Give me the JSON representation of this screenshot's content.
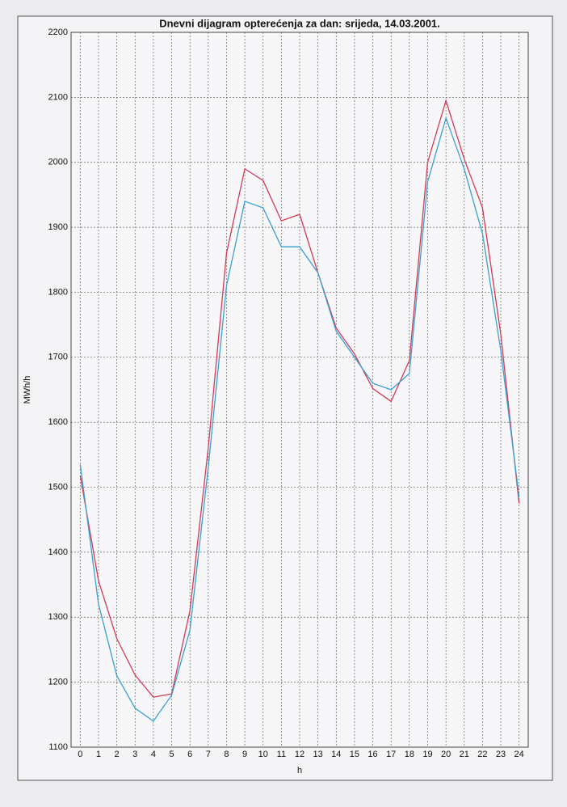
{
  "chart_data": {
    "type": "line",
    "title": "Dnevni dijagram opterećenja za dan: srijeda, 14.03.2001.",
    "xlabel": "h",
    "ylabel": "MWh/h",
    "x": [
      0,
      1,
      2,
      3,
      4,
      5,
      6,
      7,
      8,
      9,
      10,
      11,
      12,
      13,
      14,
      15,
      16,
      17,
      18,
      19,
      20,
      21,
      22,
      23,
      24
    ],
    "series": [
      {
        "color": "#d23a55",
        "values": [
          1518,
          1356,
          1267,
          1211,
          1177,
          1182,
          1310,
          1560,
          1860,
          1990,
          1972,
          1910,
          1920,
          1830,
          1745,
          1705,
          1652,
          1632,
          1695,
          2000,
          2095,
          2005,
          1930,
          1735,
          1475
        ]
      },
      {
        "color": "#3a9fd0",
        "values": [
          1535,
          1320,
          1210,
          1160,
          1140,
          1180,
          1280,
          1530,
          1810,
          1940,
          1930,
          1870,
          1870,
          1830,
          1740,
          1700,
          1660,
          1650,
          1675,
          1970,
          2068,
          1990,
          1890,
          1710,
          1485
        ]
      }
    ],
    "xlim": [
      -0.5,
      24.5
    ],
    "xticks": [
      0,
      1,
      2,
      3,
      4,
      5,
      6,
      7,
      8,
      9,
      10,
      11,
      12,
      13,
      14,
      15,
      16,
      17,
      18,
      19,
      20,
      21,
      22,
      23,
      24
    ],
    "ylim": [
      1100,
      2200
    ],
    "yticks": [
      1100,
      1200,
      1300,
      1400,
      1500,
      1600,
      1700,
      1800,
      1900,
      2000,
      2100,
      2200
    ],
    "grid": true
  }
}
